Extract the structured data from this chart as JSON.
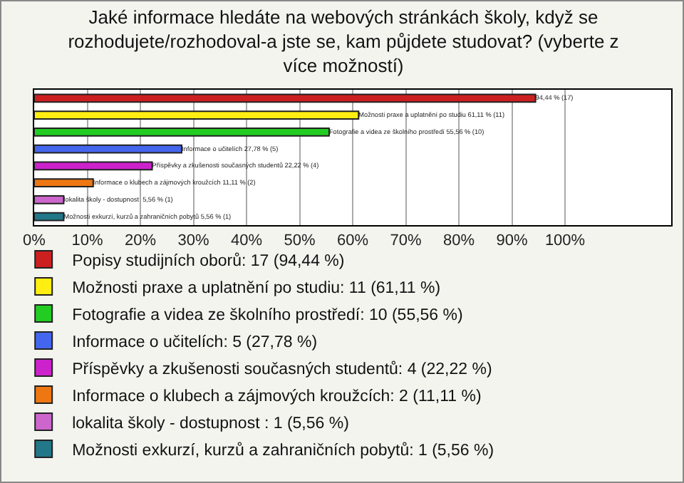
{
  "chart_data": {
    "type": "bar",
    "orientation": "horizontal",
    "title": "Jaké informace hledáte na webových stránkách školy, když se rozhodujete/rozhodoval-a jste se, kam půjdete studovat? (vyberte z více možností)",
    "categories": [
      null,
      null,
      null,
      null,
      null,
      null,
      null,
      null
    ],
    "xlim": [
      0,
      120
    ],
    "xticks": [
      {
        "value": 0,
        "label": "0%"
      },
      {
        "value": 10,
        "label": "10%"
      },
      {
        "value": 20,
        "label": "20%"
      },
      {
        "value": 30,
        "label": "30%"
      },
      {
        "value": 40,
        "label": "40%"
      },
      {
        "value": 50,
        "label": "50%"
      },
      {
        "value": 60,
        "label": "60%"
      },
      {
        "value": 70,
        "label": "70%"
      },
      {
        "value": 80,
        "label": "80%"
      },
      {
        "value": 90,
        "label": "90%"
      },
      {
        "value": 100,
        "label": "100%"
      }
    ],
    "grid": "x",
    "legend": "bottom",
    "series": [
      {
        "name": "Popisy studijních oborů: 17 (94,44 %)",
        "color": "#cc2020",
        "values": [
          94.44,
          null,
          null,
          null,
          null,
          null,
          null,
          null
        ],
        "value_labels": [
          "94,44 % (17)",
          null,
          null,
          null,
          null,
          null,
          null,
          null
        ]
      },
      {
        "name": "Možnosti praxe a uplatnění po studiu: 11 (61,11 %)",
        "color": "#ffee11",
        "values": [
          null,
          61.11,
          null,
          null,
          null,
          null,
          null,
          null
        ],
        "value_labels": [
          null,
          "Možnosti praxe a uplatnění po studiu 61,11 % (11)",
          null,
          null,
          null,
          null,
          null,
          null
        ]
      },
      {
        "name": "Fotografie a videa ze školního prostředí: 10 (55,56 %)",
        "color": "#22cc22",
        "values": [
          null,
          null,
          55.56,
          null,
          null,
          null,
          null,
          null
        ],
        "value_labels": [
          null,
          null,
          "Fotografie a videa ze školního prostředí 55,56 % (10)",
          null,
          null,
          null,
          null,
          null
        ]
      },
      {
        "name": "Informace o učitelích: 5 (27,78 %)",
        "color": "#4466ee",
        "values": [
          null,
          null,
          null,
          27.78,
          null,
          null,
          null,
          null
        ],
        "value_labels": [
          null,
          null,
          null,
          "Informace o učitelích 27,78 % (5)",
          null,
          null,
          null,
          null
        ]
      },
      {
        "name": "Příspěvky a zkušenosti současných studentů: 4 (22,22 %)",
        "color": "#cc22cc",
        "values": [
          null,
          null,
          null,
          null,
          22.22,
          null,
          null,
          null
        ],
        "value_labels": [
          null,
          null,
          null,
          null,
          "Příspěvky a zkušenosti současných studentů 22,22 % (4)",
          null,
          null,
          null
        ]
      },
      {
        "name": "Informace o klubech a zájmových kroužcích: 2 (11,11 %)",
        "color": "#ee7711",
        "values": [
          null,
          null,
          null,
          null,
          null,
          11.11,
          null,
          null
        ],
        "value_labels": [
          null,
          null,
          null,
          null,
          null,
          "Informace o klubech a zájmových kroužcích 11,11 % (2)",
          null,
          null
        ]
      },
      {
        "name": "lokalita školy - dostupnost : 1 (5,56 %)",
        "color": "#cc66cc",
        "values": [
          null,
          null,
          null,
          null,
          null,
          null,
          5.56,
          null
        ],
        "value_labels": [
          null,
          null,
          null,
          null,
          null,
          null,
          "lokalita školy - dostupnost  5,56 % (1)",
          null
        ]
      },
      {
        "name": "Možnosti exkurzí, kurzů a zahraničních pobytů: 1 (5,56 %)",
        "color": "#227788",
        "values": [
          null,
          null,
          null,
          null,
          null,
          null,
          null,
          5.56
        ],
        "value_labels": [
          null,
          null,
          null,
          null,
          null,
          null,
          null,
          "Možnosti exkurzí, kurzů a zahraničních pobytů 5,56 % (1)"
        ]
      }
    ]
  }
}
